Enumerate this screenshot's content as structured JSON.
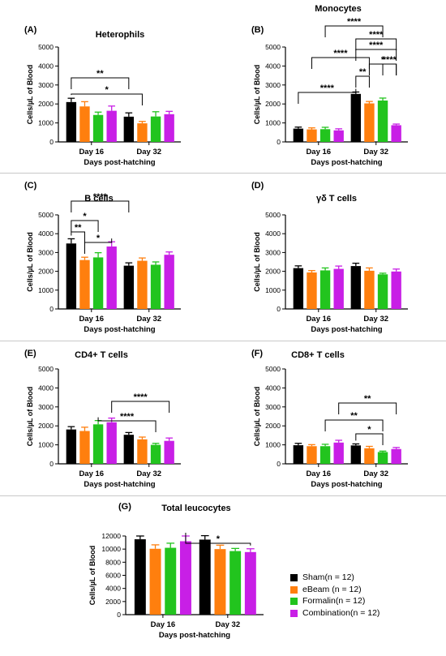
{
  "colors": {
    "sham": "#000000",
    "ebeam": "#ff7f0e",
    "formalin": "#22c41e",
    "combination": "#c81fe6"
  },
  "legend": {
    "items": [
      {
        "label": "Sham",
        "n": "(n = 12)",
        "color": "#000000"
      },
      {
        "label": "eBeam",
        "n": "(n = 12)",
        "color": "#ff7f0e"
      },
      {
        "label": "Formalin",
        "n": "(n = 12)",
        "color": "#22c41e"
      },
      {
        "label": "Combination",
        "n": "(n = 12)",
        "color": "#c81fe6"
      }
    ]
  },
  "chart_data": [
    {
      "type": "bar",
      "panel": "(A)",
      "title": "Heterophils",
      "xlabel": "Days post-hatching",
      "ylabel": "Cells/µL of Blood",
      "categories": [
        "Day 16",
        "Day 32"
      ],
      "ylim": [
        0,
        5000
      ],
      "yticks": [
        0,
        1000,
        2000,
        3000,
        4000,
        5000
      ],
      "series": [
        {
          "name": "Sham",
          "values": [
            2100,
            1330
          ],
          "errors": [
            200,
            200
          ]
        },
        {
          "name": "eBeam",
          "values": [
            1870,
            980
          ],
          "errors": [
            250,
            100
          ]
        },
        {
          "name": "Formalin",
          "values": [
            1420,
            1340
          ],
          "errors": [
            150,
            250
          ]
        },
        {
          "name": "Combination",
          "values": [
            1640,
            1460
          ],
          "errors": [
            250,
            150
          ]
        }
      ],
      "significance": [
        {
          "from": [
            0,
            0
          ],
          "to": [
            1,
            1
          ],
          "label": "*"
        },
        {
          "from": [
            0,
            0
          ],
          "to": [
            1,
            0
          ],
          "label": "**"
        }
      ]
    },
    {
      "type": "bar",
      "panel": "(B)",
      "title": "Monocytes",
      "xlabel": "Days post-hatching",
      "ylabel": "Cells/µL of Blood",
      "categories": [
        "Day 16",
        "Day 32"
      ],
      "ylim": [
        0,
        5000
      ],
      "yticks": [
        0,
        1000,
        2000,
        3000,
        4000,
        5000
      ],
      "series": [
        {
          "name": "Sham",
          "values": [
            700,
            2530
          ],
          "errors": [
            80,
            100
          ]
        },
        {
          "name": "eBeam",
          "values": [
            660,
            2030
          ],
          "errors": [
            80,
            100
          ]
        },
        {
          "name": "Formalin",
          "values": [
            670,
            2180
          ],
          "errors": [
            100,
            130
          ]
        },
        {
          "name": "Combination",
          "values": [
            610,
            880
          ],
          "errors": [
            80,
            60
          ]
        }
      ],
      "significance": [
        {
          "from": [
            0,
            0
          ],
          "to": [
            1,
            0
          ],
          "label": "****"
        },
        {
          "from": [
            1,
            0
          ],
          "to": [
            1,
            1
          ],
          "label": "**"
        },
        {
          "from": [
            1,
            1
          ],
          "to": [
            1,
            3
          ],
          "label": "*"
        },
        {
          "from": [
            1,
            2
          ],
          "to": [
            1,
            3
          ],
          "label": "****"
        },
        {
          "from": [
            0,
            1
          ],
          "to": [
            1,
            1
          ],
          "label": "****"
        },
        {
          "from": [
            1,
            0
          ],
          "to": [
            1,
            3
          ],
          "label": "****"
        },
        {
          "from": [
            1,
            0
          ],
          "to": [
            1,
            3
          ],
          "label": "****"
        },
        {
          "from": [
            0,
            2
          ],
          "to": [
            1,
            2
          ],
          "label": "****"
        }
      ]
    },
    {
      "type": "bar",
      "panel": "(C)",
      "title": "B cells",
      "xlabel": "Days post-hatching",
      "ylabel": "Cells/µL of Blood",
      "categories": [
        "Day 16",
        "Day 32"
      ],
      "ylim": [
        0,
        5000
      ],
      "yticks": [
        0,
        1000,
        2000,
        3000,
        4000,
        5000
      ],
      "series": [
        {
          "name": "Sham",
          "values": [
            3480,
            2300
          ],
          "errors": [
            250,
            150
          ]
        },
        {
          "name": "eBeam",
          "values": [
            2600,
            2560
          ],
          "errors": [
            150,
            150
          ]
        },
        {
          "name": "Formalin",
          "values": [
            2740,
            2350
          ],
          "errors": [
            250,
            150
          ]
        },
        {
          "name": "Combination",
          "values": [
            3320,
            2880
          ],
          "errors": [
            250,
            150
          ]
        }
      ],
      "significance": [
        {
          "from": [
            0,
            0
          ],
          "to": [
            0,
            1
          ],
          "label": "**"
        },
        {
          "from": [
            0,
            1
          ],
          "to": [
            0,
            3
          ],
          "label": "*"
        },
        {
          "from": [
            0,
            0
          ],
          "to": [
            0,
            2
          ],
          "label": "*"
        },
        {
          "from": [
            0,
            0
          ],
          "to": [
            1,
            0
          ],
          "label": "****"
        }
      ]
    },
    {
      "type": "bar",
      "panel": "(D)",
      "title": "γδ T cells",
      "xlabel": "Days post-hatching",
      "ylabel": "Cells/µL of Blood",
      "categories": [
        "Day 16",
        "Day 32"
      ],
      "ylim": [
        0,
        5000
      ],
      "yticks": [
        0,
        1000,
        2000,
        3000,
        4000,
        5000
      ],
      "series": [
        {
          "name": "Sham",
          "values": [
            2170,
            2280
          ],
          "errors": [
            120,
            150
          ]
        },
        {
          "name": "eBeam",
          "values": [
            1940,
            2030
          ],
          "errors": [
            100,
            150
          ]
        },
        {
          "name": "Formalin",
          "values": [
            2050,
            1840
          ],
          "errors": [
            130,
            60
          ]
        },
        {
          "name": "Combination",
          "values": [
            2130,
            1990
          ],
          "errors": [
            150,
            130
          ]
        }
      ],
      "significance": []
    },
    {
      "type": "bar",
      "panel": "(E)",
      "title": "CD4+ T cells",
      "xlabel": "Days post-hatching",
      "ylabel": "Cells/µL of Blood",
      "categories": [
        "Day 16",
        "Day 32"
      ],
      "ylim": [
        0,
        5000
      ],
      "yticks": [
        0,
        1000,
        2000,
        3000,
        4000,
        5000
      ],
      "series": [
        {
          "name": "Sham",
          "values": [
            1810,
            1530
          ],
          "errors": [
            150,
            120
          ]
        },
        {
          "name": "eBeam",
          "values": [
            1730,
            1290
          ],
          "errors": [
            200,
            120
          ]
        },
        {
          "name": "Formalin",
          "values": [
            2080,
            1000
          ],
          "errors": [
            200,
            80
          ]
        },
        {
          "name": "Combination",
          "values": [
            2190,
            1210
          ],
          "errors": [
            220,
            150
          ]
        }
      ],
      "significance": [
        {
          "from": [
            0,
            2
          ],
          "to": [
            1,
            2
          ],
          "label": "****"
        },
        {
          "from": [
            0,
            3
          ],
          "to": [
            1,
            3
          ],
          "label": "****"
        }
      ]
    },
    {
      "type": "bar",
      "panel": "(F)",
      "title": "CD8+ T cells",
      "xlabel": "Days post-hatching",
      "ylabel": "Cells/µL of Blood",
      "categories": [
        "Day 16",
        "Day 32"
      ],
      "ylim": [
        0,
        5000
      ],
      "yticks": [
        0,
        1000,
        2000,
        3000,
        4000,
        5000
      ],
      "series": [
        {
          "name": "Sham",
          "values": [
            980,
            970
          ],
          "errors": [
            100,
            80
          ]
        },
        {
          "name": "eBeam",
          "values": [
            930,
            820
          ],
          "errors": [
            80,
            100
          ]
        },
        {
          "name": "Formalin",
          "values": [
            930,
            620
          ],
          "errors": [
            100,
            50
          ]
        },
        {
          "name": "Combination",
          "values": [
            1120,
            780
          ],
          "errors": [
            120,
            80
          ]
        }
      ],
      "significance": [
        {
          "from": [
            1,
            0
          ],
          "to": [
            1,
            2
          ],
          "label": "*"
        },
        {
          "from": [
            0,
            2
          ],
          "to": [
            1,
            2
          ],
          "label": "**"
        },
        {
          "from": [
            0,
            3
          ],
          "to": [
            1,
            3
          ],
          "label": "**"
        }
      ]
    },
    {
      "type": "bar",
      "panel": "(G)",
      "title": "Total leucocytes",
      "xlabel": "Days post-hatching",
      "ylabel": "Cells/µL of Blood",
      "categories": [
        "Day 16",
        "Day 32"
      ],
      "ylim": [
        0,
        12000
      ],
      "yticks": [
        0,
        2000,
        4000,
        6000,
        8000,
        10000,
        12000
      ],
      "series": [
        {
          "name": "Sham",
          "values": [
            11500,
            11450
          ],
          "errors": [
            500,
            600
          ]
        },
        {
          "name": "eBeam",
          "values": [
            10050,
            10000
          ],
          "errors": [
            600,
            600
          ]
        },
        {
          "name": "Formalin",
          "values": [
            10200,
            9700
          ],
          "errors": [
            700,
            400
          ]
        },
        {
          "name": "Combination",
          "values": [
            11200,
            9550
          ],
          "errors": [
            800,
            500
          ]
        }
      ],
      "significance": [
        {
          "from": [
            0,
            3
          ],
          "to": [
            1,
            3
          ],
          "label": "*"
        }
      ]
    }
  ]
}
